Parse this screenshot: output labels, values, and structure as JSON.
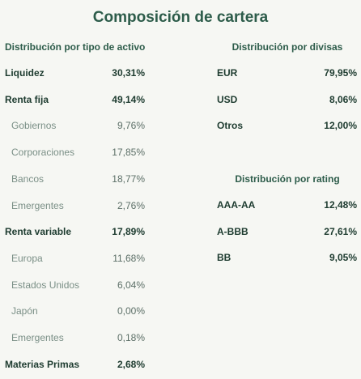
{
  "title": "Composición de cartera",
  "left_section": {
    "title": "Distribución por tipo de activo",
    "rows": [
      {
        "label": "Liquidez",
        "value": "30,31%",
        "level": "main"
      },
      {
        "label": "Renta fija",
        "value": "49,14%",
        "level": "main"
      },
      {
        "label": "Gobiernos",
        "value": "9,76%",
        "level": "sub"
      },
      {
        "label": "Corporaciones",
        "value": "17,85%",
        "level": "sub"
      },
      {
        "label": "Bancos",
        "value": "18,77%",
        "level": "sub"
      },
      {
        "label": "Emergentes",
        "value": "2,76%",
        "level": "sub"
      },
      {
        "label": "Renta variable",
        "value": "17,89%",
        "level": "main"
      },
      {
        "label": "Europa",
        "value": "11,68%",
        "level": "sub"
      },
      {
        "label": "Estados Unidos",
        "value": "6,04%",
        "level": "sub"
      },
      {
        "label": "Japón",
        "value": "0,00%",
        "level": "sub"
      },
      {
        "label": "Emergentes",
        "value": "0,18%",
        "level": "sub"
      },
      {
        "label": "Materias Primas",
        "value": "2,68%",
        "level": "main"
      }
    ]
  },
  "currency_section": {
    "title": "Distribución por divisas",
    "rows": [
      {
        "label": "EUR",
        "value": "79,95%"
      },
      {
        "label": "USD",
        "value": "8,06%"
      },
      {
        "label": "Otros",
        "value": "12,00%"
      }
    ]
  },
  "rating_section": {
    "title": "Distribución por rating",
    "rows": [
      {
        "label": "AAA-AA",
        "value": "12,48%"
      },
      {
        "label": "A-BBB",
        "value": "27,61%"
      },
      {
        "label": "BB",
        "value": "9,05%"
      }
    ]
  }
}
